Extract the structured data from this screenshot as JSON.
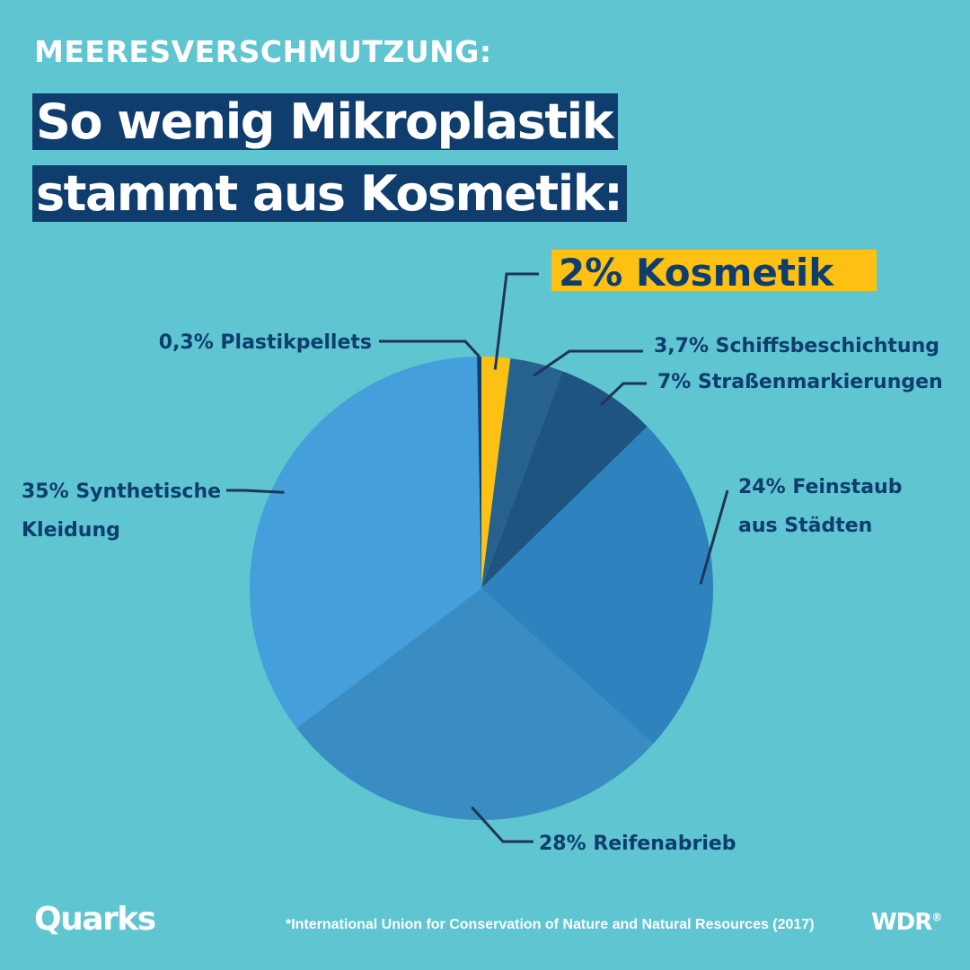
{
  "header": {
    "kicker": "MEERESVERSCHMUTZUNG:",
    "headline_line1": "So wenig Mikroplastik",
    "headline_line2": "stammt aus Kosmetik:"
  },
  "chart_data": {
    "type": "pie",
    "highlight_color": "#fdc113",
    "slices": [
      {
        "label": "Kosmetik",
        "value": 2,
        "display_label": "2% Kosmetik",
        "color": "#fdc113",
        "highlight": true
      },
      {
        "label": "Schiffsbeschichtung",
        "value": 3.7,
        "display_label": "3,7% Schiffsbeschichtung",
        "color": "#27628e"
      },
      {
        "label": "Straßenmarkierungen",
        "value": 7,
        "display_label": "7% Straßenmarkierungen",
        "color": "#1e5580"
      },
      {
        "label": "Feinstaub aus Städten",
        "value": 24,
        "display_label": [
          "24% Feinstaub",
          "aus Städten"
        ],
        "color": "#2e82bd"
      },
      {
        "label": "Reifenabrieb",
        "value": 28,
        "display_label": "28% Reifenabrieb",
        "color": "#3a8dc2"
      },
      {
        "label": "Synthetische Kleidung",
        "value": 35,
        "display_label": [
          "35% Synthetische",
          "Kleidung"
        ],
        "color": "#449fdb"
      },
      {
        "label": "Plastikpellets",
        "value": 0.3,
        "display_label": "0,3% Plastikpellets",
        "color": "#0f3d6e"
      }
    ]
  },
  "footer": {
    "logo": "Quarks",
    "source": "*International Union for Conservation of Nature and Natural Resources (2017)",
    "broadcaster": "WDR",
    "broadcaster_mark": "®"
  }
}
